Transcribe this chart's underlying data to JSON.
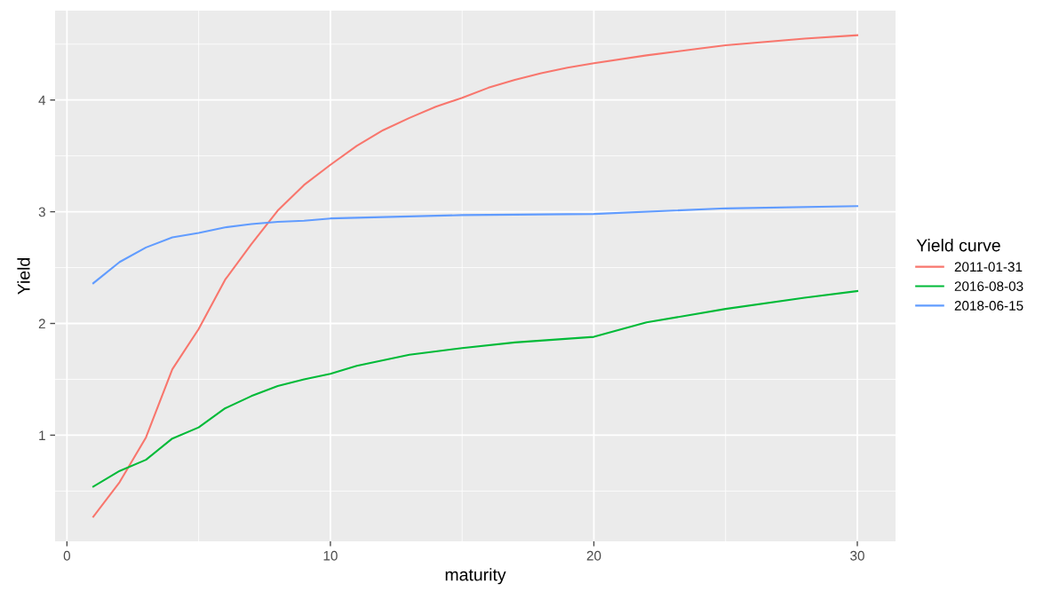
{
  "chart_data": {
    "type": "line",
    "xlabel": "maturity",
    "ylabel": "Yield",
    "legend_title": "Yield curve",
    "legend": "right",
    "grid": true,
    "xlim": [
      -0.45,
      31.45
    ],
    "ylim": [
      0.05,
      4.8
    ],
    "xticks": [
      0,
      10,
      20,
      30
    ],
    "yticks": [
      1,
      2,
      3,
      4
    ],
    "series": [
      {
        "name": "2011-01-31",
        "color": "#f8766d",
        "x": [
          1,
          2,
          3,
          4,
          5,
          6,
          7,
          8,
          9,
          10,
          11,
          12,
          13,
          14,
          15,
          16,
          17,
          18,
          19,
          20,
          22,
          24,
          25,
          26,
          28,
          30
        ],
        "values": [
          0.27,
          0.58,
          0.98,
          1.59,
          1.95,
          2.39,
          2.71,
          3.01,
          3.24,
          3.42,
          3.59,
          3.73,
          3.84,
          3.94,
          4.02,
          4.11,
          4.18,
          4.24,
          4.29,
          4.33,
          4.4,
          4.46,
          4.49,
          4.51,
          4.55,
          4.58
        ]
      },
      {
        "name": "2016-08-03",
        "color": "#00ba38",
        "x": [
          1,
          2,
          3,
          4,
          5,
          6,
          7,
          8,
          9,
          10,
          11,
          12,
          13,
          14,
          15,
          17,
          20,
          22,
          25,
          28,
          30
        ],
        "values": [
          0.54,
          0.68,
          0.78,
          0.97,
          1.07,
          1.24,
          1.35,
          1.44,
          1.5,
          1.55,
          1.62,
          1.67,
          1.72,
          1.75,
          1.78,
          1.83,
          1.88,
          2.01,
          2.13,
          2.23,
          2.29
        ]
      },
      {
        "name": "2018-06-15",
        "color": "#619cff",
        "x": [
          1,
          2,
          3,
          4,
          5,
          6,
          7,
          8,
          9,
          10,
          15,
          20,
          25,
          30
        ],
        "values": [
          2.36,
          2.55,
          2.68,
          2.77,
          2.81,
          2.86,
          2.89,
          2.91,
          2.92,
          2.94,
          2.97,
          2.98,
          3.03,
          3.05
        ]
      }
    ]
  }
}
